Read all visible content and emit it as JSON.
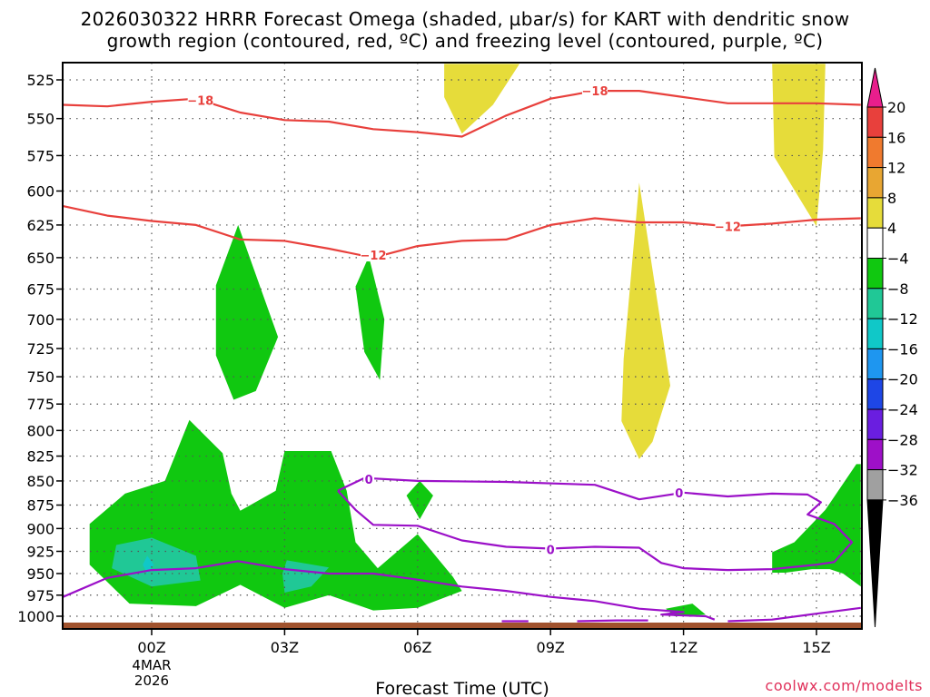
{
  "chart_data": {
    "type": "contour",
    "title_line1": "2026030322 HRRR Forecast Omega (shaded, µbar/s) for KART with dendritic snow",
    "title_line2": "growth region (contoured, red, ºC) and freezing level (contoured, purple, ºC)",
    "xlabel": "Forecast Time (UTC)",
    "credit": "coolwx.com/modelts",
    "x_range_hours": [
      -2,
      16
    ],
    "y_range_hpa": [
      515,
      1010
    ],
    "y_ticks": [
      525,
      550,
      575,
      600,
      625,
      650,
      675,
      700,
      725,
      750,
      775,
      800,
      825,
      850,
      875,
      900,
      925,
      950,
      975,
      1000
    ],
    "x_ticks": [
      {
        "hour": 0,
        "label": "00Z",
        "sub1": "4MAR",
        "sub2": "2026"
      },
      {
        "hour": 3,
        "label": "03Z"
      },
      {
        "hour": 6,
        "label": "06Z"
      },
      {
        "hour": 9,
        "label": "09Z"
      },
      {
        "hour": 12,
        "label": "12Z"
      },
      {
        "hour": 15,
        "label": "15Z"
      }
    ],
    "colorbar": {
      "labels": [
        "20",
        "16",
        "12",
        "8",
        "4",
        "−4",
        "−8",
        "−12",
        "−16",
        "−20",
        "−24",
        "−28",
        "−32",
        "−36"
      ],
      "colors": [
        "#e8403c",
        "#f07a2e",
        "#e8a632",
        "#e6dc3a",
        "#ffffff",
        "#10c810",
        "#20c896",
        "#10c8c8",
        "#1e96f0",
        "#1e46e6",
        "#6a1ee0",
        "#9e10c8",
        "#a0a0a0"
      ],
      "top_color": "#e81e8c",
      "bottom_color": "#000000"
    },
    "red_contours": [
      {
        "level": -18,
        "color": "#e8403c",
        "points": [
          [
            -2,
            541
          ],
          [
            -1,
            542
          ],
          [
            0,
            539
          ],
          [
            1,
            537
          ],
          [
            2,
            546
          ],
          [
            3,
            551
          ],
          [
            4,
            552
          ],
          [
            5,
            557
          ],
          [
            6,
            559
          ],
          [
            7,
            562
          ],
          [
            8,
            548
          ],
          [
            9,
            537
          ],
          [
            10,
            532
          ],
          [
            11,
            532
          ],
          [
            12,
            536
          ],
          [
            13,
            540
          ],
          [
            14,
            540
          ],
          [
            15,
            540
          ],
          [
            16,
            541
          ]
        ],
        "labels": [
          {
            "hour": 1.1,
            "hpa": 538,
            "text": "−18"
          },
          {
            "hour": 10.0,
            "hpa": 532,
            "text": "−18"
          }
        ]
      },
      {
        "level": -12,
        "color": "#e8403c",
        "points": [
          [
            -2,
            611
          ],
          [
            -1,
            618
          ],
          [
            0,
            622
          ],
          [
            1,
            625
          ],
          [
            2,
            636
          ],
          [
            3,
            637
          ],
          [
            4,
            643
          ],
          [
            5,
            650
          ],
          [
            6,
            641
          ],
          [
            7,
            637
          ],
          [
            8,
            636
          ],
          [
            9,
            625
          ],
          [
            10,
            620
          ],
          [
            11,
            623
          ],
          [
            12,
            623
          ],
          [
            13,
            626
          ],
          [
            14,
            624
          ],
          [
            15,
            621
          ],
          [
            16,
            620
          ]
        ],
        "labels": [
          {
            "hour": 5.0,
            "hpa": 648,
            "text": "−12"
          },
          {
            "hour": 13.0,
            "hpa": 626,
            "text": "−12"
          }
        ]
      }
    ],
    "freezing_contours": [
      {
        "level": 0,
        "color": "#9b10c8",
        "points": [
          [
            -2,
            977
          ],
          [
            -1,
            955
          ],
          [
            0,
            946
          ],
          [
            1,
            944
          ],
          [
            1.95,
            936
          ],
          [
            3,
            945
          ],
          [
            4,
            950
          ],
          [
            5,
            950
          ],
          [
            6,
            957
          ],
          [
            7,
            965
          ],
          [
            8,
            970
          ],
          [
            9,
            977
          ],
          [
            10,
            982
          ],
          [
            11,
            991
          ],
          [
            12,
            995
          ],
          [
            11.5,
            998
          ],
          [
            12.5,
            1000
          ],
          [
            12.7,
            1004
          ]
        ],
        "labels": []
      },
      {
        "level": 0,
        "color": "#9b10c8",
        "points": [
          [
            4.2,
            860
          ],
          [
            4.8,
            847
          ],
          [
            6,
            850
          ],
          [
            8,
            851
          ],
          [
            10,
            854
          ],
          [
            11,
            869
          ],
          [
            12,
            862
          ],
          [
            13,
            866
          ],
          [
            14,
            863
          ],
          [
            14.8,
            864
          ],
          [
            15.1,
            872
          ],
          [
            14.8,
            885
          ],
          [
            15.4,
            895
          ],
          [
            15.8,
            915
          ],
          [
            15.4,
            937
          ],
          [
            15,
            940
          ],
          [
            14,
            945
          ],
          [
            13,
            946
          ],
          [
            12,
            944
          ],
          [
            11.5,
            938
          ],
          [
            11,
            921
          ],
          [
            10,
            920
          ],
          [
            9,
            922
          ],
          [
            8,
            920
          ],
          [
            7,
            913
          ],
          [
            6,
            897
          ],
          [
            5,
            896
          ],
          [
            4.6,
            880
          ],
          [
            4.2,
            860
          ]
        ],
        "labels": [
          {
            "hour": 4.9,
            "hpa": 848,
            "text": "0"
          },
          {
            "hour": 9.0,
            "hpa": 923,
            "text": "0"
          },
          {
            "hour": 11.9,
            "hpa": 862,
            "text": "0"
          }
        ]
      },
      {
        "level": 0,
        "color": "#9b10c8",
        "points": [
          [
            13,
            1006
          ],
          [
            14,
            1004
          ],
          [
            15,
            997
          ],
          [
            16,
            990
          ]
        ],
        "labels": []
      },
      {
        "level": 0,
        "color": "#9b10c8",
        "points": [
          [
            7.9,
            1006
          ],
          [
            8.5,
            1006
          ]
        ],
        "labels": []
      },
      {
        "level": 0,
        "color": "#9b10c8",
        "points": [
          [
            9.6,
            1006
          ],
          [
            10.5,
            1005
          ],
          [
            11.2,
            1005
          ]
        ],
        "labels": []
      }
    ],
    "omega_regions": [
      {
        "range": "4 to 8",
        "color": "#e6dc3a",
        "points": [
          [
            6.6,
            515
          ],
          [
            8.3,
            515
          ],
          [
            7.7,
            541
          ],
          [
            7.0,
            560
          ],
          [
            6.6,
            536
          ],
          [
            6.6,
            515
          ]
        ]
      },
      {
        "range": "4 to 8",
        "color": "#e6dc3a",
        "points": [
          [
            14.0,
            515
          ],
          [
            15.2,
            515
          ],
          [
            15.15,
            571
          ],
          [
            15.0,
            626
          ],
          [
            14.05,
            576
          ],
          [
            14.0,
            515
          ]
        ]
      },
      {
        "range": "4 to 8",
        "color": "#e6dc3a",
        "points": [
          [
            11.0,
            594
          ],
          [
            11.7,
            758
          ],
          [
            11.3,
            811
          ],
          [
            11.0,
            828
          ],
          [
            10.6,
            791
          ],
          [
            10.65,
            734
          ],
          [
            11.0,
            594
          ]
        ]
      },
      {
        "range": "-4 to -8",
        "color": "#10c810",
        "points": [
          [
            1.95,
            625
          ],
          [
            2.85,
            715
          ],
          [
            2.35,
            763
          ],
          [
            1.85,
            771
          ],
          [
            1.45,
            731
          ],
          [
            1.45,
            672
          ],
          [
            1.95,
            625
          ]
        ]
      },
      {
        "range": "-4 to -8",
        "color": "#10c810",
        "points": [
          [
            4.9,
            649
          ],
          [
            5.25,
            700
          ],
          [
            5.15,
            753
          ],
          [
            4.8,
            728
          ],
          [
            4.6,
            673
          ],
          [
            4.9,
            649
          ]
        ]
      },
      {
        "range": "-4 to -8",
        "color": "#10c810",
        "points": [
          [
            0.85,
            790
          ],
          [
            1.6,
            822
          ],
          [
            1.8,
            863
          ],
          [
            2.0,
            881
          ],
          [
            2.8,
            860
          ],
          [
            3.0,
            820
          ],
          [
            4.05,
            820
          ],
          [
            4.4,
            860
          ],
          [
            4.6,
            915
          ],
          [
            5.1,
            944
          ],
          [
            6.0,
            906
          ],
          [
            6.8,
            954
          ],
          [
            7.0,
            970
          ],
          [
            6.0,
            990
          ],
          [
            5.0,
            993
          ],
          [
            4.0,
            975
          ],
          [
            3.0,
            990
          ],
          [
            2.0,
            963
          ],
          [
            1.0,
            988
          ],
          [
            -0.5,
            985
          ],
          [
            -1.4,
            940
          ],
          [
            -1.4,
            895
          ],
          [
            -0.6,
            863
          ],
          [
            0.3,
            850
          ],
          [
            0.85,
            790
          ]
        ]
      },
      {
        "range": "-4 to -8",
        "color": "#10c810",
        "points": [
          [
            6.05,
            850
          ],
          [
            6.35,
            865
          ],
          [
            6.05,
            890
          ],
          [
            5.75,
            865
          ],
          [
            6.05,
            850
          ]
        ]
      },
      {
        "range": "-4 to -8",
        "color": "#10c810",
        "points": [
          [
            15.9,
            833
          ],
          [
            16.0,
            833
          ],
          [
            16.0,
            965
          ],
          [
            15.6,
            950
          ],
          [
            15.3,
            945
          ],
          [
            14.9,
            945
          ],
          [
            14.3,
            949
          ],
          [
            14.0,
            949
          ],
          [
            14.0,
            926
          ],
          [
            14.5,
            915
          ],
          [
            15.2,
            880
          ],
          [
            15.9,
            833
          ]
        ]
      },
      {
        "range": "-4 to -8",
        "color": "#10c810",
        "points": [
          [
            11.6,
            991
          ],
          [
            12.2,
            985
          ],
          [
            12.5,
            998
          ],
          [
            11.8,
            1000
          ],
          [
            11.6,
            991
          ]
        ]
      },
      {
        "range": "-8 to -12",
        "color": "#20c896",
        "points": [
          [
            0,
            910
          ],
          [
            1,
            930
          ],
          [
            1.1,
            958
          ],
          [
            0,
            965
          ],
          [
            -0.9,
            944
          ],
          [
            -0.8,
            918
          ],
          [
            0,
            910
          ]
        ]
      },
      {
        "range": "-8 to -12",
        "color": "#20c896",
        "points": [
          [
            3.05,
            935
          ],
          [
            4.0,
            943
          ],
          [
            3.6,
            965
          ],
          [
            3.0,
            972
          ],
          [
            2.95,
            950
          ],
          [
            3.05,
            935
          ]
        ]
      },
      {
        "range": "-12 to -16",
        "color": "#10c8c8",
        "points": [
          [
            -0.1,
            930
          ],
          [
            0.05,
            940
          ],
          [
            -0.1,
            950
          ],
          [
            -0.2,
            940
          ],
          [
            -0.1,
            930
          ]
        ]
      }
    ],
    "surface": {
      "color": "#a0522d",
      "label": "terrain"
    }
  }
}
